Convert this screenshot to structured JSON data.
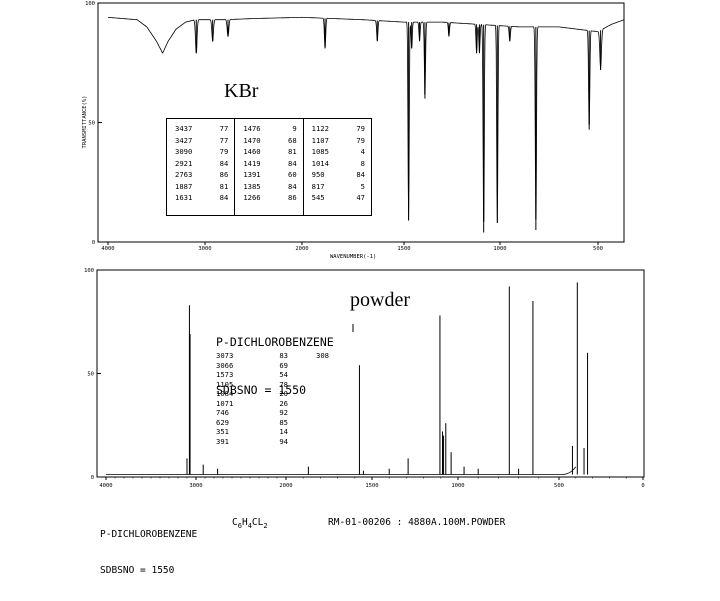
{
  "chart_data": [
    {
      "type": "line",
      "title": "",
      "xlabel": "WAVENUMBER(-1)",
      "ylabel": "TRANSMITTANCE(%)",
      "annotation": "KBr",
      "xlim": [
        4000,
        400
      ],
      "ylim": [
        0,
        100
      ],
      "x_ticks": [
        "4000",
        "3000",
        "2000",
        "1500",
        "1000",
        "500"
      ],
      "y_ticks": [
        "0",
        "50",
        "100"
      ],
      "peak_table": [
        [
          [
            "3437",
            "77"
          ],
          [
            "3427",
            "77"
          ],
          [
            "3090",
            "79"
          ],
          [
            "2921",
            "84"
          ],
          [
            "2763",
            "86"
          ],
          [
            "1887",
            "81"
          ],
          [
            "1631",
            "84"
          ]
        ],
        [
          [
            "1476",
            "9"
          ],
          [
            "1470",
            "68"
          ],
          [
            "1460",
            "81"
          ],
          [
            "1419",
            "84"
          ],
          [
            "1391",
            "60"
          ],
          [
            "1385",
            "84"
          ],
          [
            "1266",
            "86"
          ]
        ],
        [
          [
            "1122",
            "79"
          ],
          [
            "1107",
            "79"
          ],
          [
            "1085",
            "4"
          ],
          [
            "1014",
            "8"
          ],
          [
            "950",
            "84"
          ],
          [
            "817",
            "5"
          ],
          [
            "545",
            "47"
          ]
        ]
      ],
      "baseline": [
        [
          4000,
          94
        ],
        [
          3700,
          93
        ],
        [
          3600,
          90
        ],
        [
          3500,
          84
        ],
        [
          3437,
          79
        ],
        [
          3380,
          84
        ],
        [
          3300,
          89
        ],
        [
          3200,
          92
        ],
        [
          3100,
          93
        ],
        [
          2800,
          93
        ],
        [
          2500,
          93.5
        ],
        [
          2000,
          94
        ],
        [
          1700,
          93
        ],
        [
          1500,
          92
        ],
        [
          1300,
          92
        ],
        [
          1100,
          91
        ],
        [
          900,
          90
        ],
        [
          700,
          90
        ],
        [
          600,
          89
        ],
        [
          500,
          88
        ],
        [
          450,
          91
        ],
        [
          400,
          93
        ]
      ],
      "peaks": [
        [
          3090,
          79
        ],
        [
          2921,
          84
        ],
        [
          2763,
          86
        ],
        [
          1887,
          81
        ],
        [
          1631,
          84
        ],
        [
          1476,
          9
        ],
        [
          1460,
          81
        ],
        [
          1419,
          84
        ],
        [
          1391,
          60
        ],
        [
          1266,
          86
        ],
        [
          1122,
          79
        ],
        [
          1107,
          79
        ],
        [
          1085,
          4
        ],
        [
          1014,
          8
        ],
        [
          950,
          84
        ],
        [
          817,
          5
        ],
        [
          545,
          47
        ],
        [
          490,
          72
        ]
      ],
      "grid": false
    },
    {
      "type": "line",
      "title": "P-DICHLOROBENZENE",
      "subtitle": "SDBSNO = 1550",
      "annotation": "powder",
      "xlabel": "",
      "ylabel": "",
      "xlim": [
        4000,
        400
      ],
      "ylim": [
        0,
        100
      ],
      "x_ticks": [
        "4000",
        "3000",
        "2000",
        "1500",
        "1000",
        "500",
        "0"
      ],
      "y_ticks": [
        "0",
        "50",
        "100"
      ],
      "peak_table": [
        [
          "3073",
          "83"
        ],
        [
          "3066",
          "69"
        ],
        [
          "1573",
          "54"
        ],
        [
          "1105",
          "78"
        ],
        [
          "1084",
          "20"
        ],
        [
          "1071",
          "26"
        ],
        [
          "746",
          "92"
        ],
        [
          "629",
          "85"
        ],
        [
          "351",
          "14"
        ],
        [
          "391",
          "94"
        ]
      ],
      "peak_table_extra": "308",
      "peaks": [
        [
          3100,
          9
        ],
        [
          3073,
          83
        ],
        [
          3066,
          69
        ],
        [
          2920,
          6
        ],
        [
          2760,
          4
        ],
        [
          1870,
          5
        ],
        [
          1573,
          54
        ],
        [
          1550,
          3
        ],
        [
          1400,
          4
        ],
        [
          1290,
          9
        ],
        [
          1105,
          78
        ],
        [
          1090,
          22
        ],
        [
          1084,
          20
        ],
        [
          1071,
          26
        ],
        [
          1040,
          12
        ],
        [
          970,
          5
        ],
        [
          900,
          4
        ],
        [
          746,
          92
        ],
        [
          700,
          4
        ],
        [
          629,
          85
        ],
        [
          420,
          15
        ],
        [
          391,
          94
        ],
        [
          351,
          14
        ],
        [
          330,
          60
        ]
      ],
      "grid": false
    }
  ],
  "footer": {
    "line1": "P-DICHLOROBENZENE",
    "line2": "SDBSNO = 1550",
    "formula": "C6H4CL2",
    "formula_parts": [
      "C",
      "6",
      "H",
      "4",
      "CL",
      "2"
    ],
    "code": "RM-01-00206 : 4880A.100M.POWDER"
  }
}
